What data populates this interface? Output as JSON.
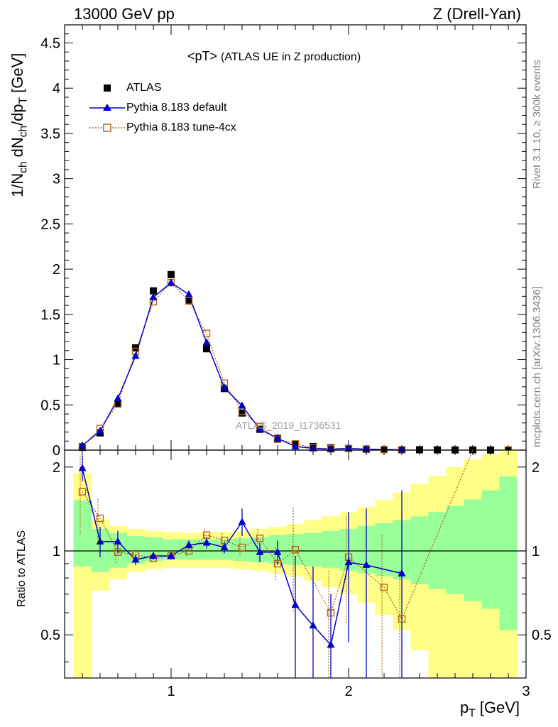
{
  "header": {
    "left": "13000 GeV pp",
    "right": "Z (Drell-Yan)"
  },
  "side_text": {
    "rivet": "Rivet 3.1.10, ≥ 300k events",
    "mcplots": "mcplots.cern.ch [arXiv:1306.3436]"
  },
  "watermark": "ATLAS_2019_I1736531",
  "main_ylabel": {
    "a": "1/N",
    "a_sub": "ch",
    "b": " dN",
    "b_sub": "ch",
    "c": "/dp",
    "c_sub": "T",
    "d": " [GeV]"
  },
  "ratio_ylabel": "Ratio to ATLAS",
  "xlabel": {
    "a": "p",
    "a_sub": "T",
    "b": " [GeV]"
  },
  "legend": [
    {
      "label": "ATLAS",
      "style": "data"
    },
    {
      "label": "Pythia 8.183 default",
      "style": "default"
    },
    {
      "label": "Pythia 8.183 tune-4cx",
      "style": "tune"
    }
  ],
  "chart_data": [
    {
      "type": "scatter",
      "title": "<pT>",
      "subtitle": "(ATLAS UE in Z production)",
      "xlabel": "pT [GeV]",
      "ylabel": "1/Nch dNch/dpT [GeV]",
      "xlim": [
        0.4,
        3.0
      ],
      "ylim": [
        0,
        4.7
      ],
      "yticks": [
        "0",
        "0.5",
        "1",
        "1.5",
        "2",
        "2.5",
        "3",
        "3.5",
        "4",
        "4.5"
      ],
      "x": [
        0.5,
        0.6,
        0.7,
        0.8,
        0.9,
        1.0,
        1.1,
        1.2,
        1.3,
        1.4,
        1.5,
        1.6,
        1.7,
        1.8,
        1.9,
        2.0,
        2.1,
        2.2,
        2.3,
        2.4,
        2.5,
        2.6,
        2.7,
        2.8,
        2.9
      ],
      "series": [
        {
          "name": "ATLAS",
          "color": "#000000",
          "values": [
            0.03,
            0.19,
            0.51,
            1.13,
            1.76,
            1.94,
            1.65,
            1.12,
            0.68,
            0.41,
            0.23,
            0.13,
            0.07,
            0.04,
            0.025,
            0.02,
            0.012,
            0.008,
            0.005,
            0.004,
            0.003,
            0.002,
            0.002,
            0.001,
            0.001
          ]
        },
        {
          "name": "Pythia 8.183 default",
          "color": "#0000cc",
          "values": [
            0.05,
            0.21,
            0.57,
            1.04,
            1.69,
            1.85,
            1.72,
            1.19,
            0.69,
            0.49,
            0.23,
            0.13,
            0.04,
            0.02,
            0.01,
            0.02,
            0.01,
            null,
            0.004,
            null,
            null,
            null,
            null,
            null,
            null
          ]
        },
        {
          "name": "Pythia 8.183 tune-4cx",
          "color": "#b5651d",
          "values": [
            0.04,
            0.24,
            0.51,
            1.09,
            1.64,
            1.85,
            1.65,
            1.29,
            0.74,
            0.43,
            0.26,
            0.12,
            0.07,
            0.025,
            0.015,
            0.018,
            0.008,
            0.006,
            0.003,
            null,
            null,
            null,
            null,
            null,
            0.002
          ]
        }
      ]
    },
    {
      "type": "scatter",
      "xlabel": "pT [GeV]",
      "ylabel": "Ratio to ATLAS",
      "xlim": [
        0.4,
        3.0
      ],
      "ylim": [
        0.35,
        2.3
      ],
      "yticks": [
        "0.5",
        "1",
        "2"
      ],
      "xticks": [
        "1",
        "2",
        "3"
      ],
      "x": [
        0.5,
        0.6,
        0.7,
        0.8,
        0.9,
        1.0,
        1.1,
        1.2,
        1.3,
        1.4,
        1.5,
        1.6,
        1.7,
        1.8,
        1.9,
        2.0,
        2.1,
        2.2,
        2.3,
        2.4,
        2.5,
        2.6,
        2.7,
        2.8,
        2.9
      ],
      "band_stat": [
        [
          0.88,
          1.52
        ],
        [
          0.84,
          1.2
        ],
        [
          0.87,
          1.16
        ],
        [
          0.9,
          1.13
        ],
        [
          0.92,
          1.12
        ],
        [
          0.93,
          1.1
        ],
        [
          0.93,
          1.1
        ],
        [
          0.93,
          1.1
        ],
        [
          0.93,
          1.1
        ],
        [
          0.92,
          1.11
        ],
        [
          0.91,
          1.12
        ],
        [
          0.9,
          1.14
        ],
        [
          0.89,
          1.15
        ],
        [
          0.88,
          1.16
        ],
        [
          0.87,
          1.18
        ],
        [
          0.85,
          1.2
        ],
        [
          0.83,
          1.23
        ],
        [
          0.81,
          1.26
        ],
        [
          0.79,
          1.29
        ],
        [
          0.76,
          1.33
        ],
        [
          0.73,
          1.38
        ],
        [
          0.7,
          1.45
        ],
        [
          0.66,
          1.53
        ],
        [
          0.62,
          1.65
        ],
        [
          0.52,
          1.85
        ]
      ],
      "band_total": [
        [
          0.35,
          1.9
        ],
        [
          0.72,
          1.3
        ],
        [
          0.79,
          1.23
        ],
        [
          0.84,
          1.2
        ],
        [
          0.86,
          1.18
        ],
        [
          0.87,
          1.17
        ],
        [
          0.87,
          1.16
        ],
        [
          0.87,
          1.17
        ],
        [
          0.87,
          1.17
        ],
        [
          0.86,
          1.18
        ],
        [
          0.85,
          1.2
        ],
        [
          0.83,
          1.22
        ],
        [
          0.81,
          1.25
        ],
        [
          0.78,
          1.29
        ],
        [
          0.74,
          1.33
        ],
        [
          0.7,
          1.38
        ],
        [
          0.65,
          1.44
        ],
        [
          0.59,
          1.52
        ],
        [
          0.52,
          1.62
        ],
        [
          0.44,
          1.74
        ],
        [
          0.35,
          1.86
        ],
        [
          0.35,
          2.0
        ],
        [
          0.35,
          2.13
        ],
        [
          0.35,
          2.22
        ],
        [
          0.35,
          2.3
        ]
      ],
      "series": [
        {
          "name": "Pythia 8.183 default",
          "color": "#0000cc",
          "values": [
            1.98,
            1.08,
            1.08,
            0.93,
            0.96,
            0.96,
            1.05,
            1.07,
            1.03,
            1.27,
            0.99,
            0.99,
            0.64,
            0.54,
            0.46,
            0.91,
            0.89,
            null,
            0.83,
            null,
            null,
            null,
            null,
            null,
            null
          ],
          "errors": [
            [
              1.78,
              2.2
            ],
            [
              0.95,
              1.22
            ],
            [
              0.98,
              1.18
            ],
            [
              0.89,
              0.97
            ],
            [
              0.93,
              0.99
            ],
            [
              0.93,
              0.99
            ],
            [
              1.01,
              1.09
            ],
            [
              1.02,
              1.12
            ],
            [
              0.98,
              1.08
            ],
            [
              1.13,
              1.42
            ],
            [
              0.91,
              1.07
            ],
            [
              0.89,
              1.09
            ],
            [
              0.35,
              0.96
            ],
            [
              0.35,
              0.88
            ],
            [
              0.35,
              0.7
            ],
            [
              0.47,
              1.38
            ],
            [
              0.35,
              1.42
            ],
            null,
            [
              0.35,
              1.65
            ],
            null,
            null,
            null,
            null,
            null,
            null
          ]
        },
        {
          "name": "Pythia 8.183 tune-4cx",
          "color": "#b5651d",
          "values": [
            1.63,
            1.31,
            0.99,
            0.97,
            0.94,
            0.96,
            1.0,
            1.14,
            1.09,
            1.03,
            1.11,
            0.9,
            1.01,
            null,
            0.6,
            0.95,
            null,
            0.74,
            0.57,
            null,
            null,
            null,
            null,
            null,
            null
          ],
          "errors": [
            [
              1.14,
              2.2
            ],
            [
              1.1,
              1.54
            ],
            [
              0.9,
              1.08
            ],
            [
              0.93,
              1.01
            ],
            [
              0.91,
              0.97
            ],
            [
              0.93,
              0.99
            ],
            [
              0.96,
              1.04
            ],
            [
              1.09,
              1.2
            ],
            [
              1.03,
              1.16
            ],
            [
              0.95,
              1.12
            ],
            [
              1.03,
              1.2
            ],
            [
              0.78,
              1.03
            ],
            [
              0.6,
              1.43
            ],
            null,
            [
              0.35,
              0.85
            ],
            [
              0.55,
              1.33
            ],
            null,
            [
              0.35,
              1.14
            ],
            [
              0.35,
              0.85
            ],
            null,
            null,
            null,
            null,
            null,
            null
          ],
          "trend_to": [
            2.7,
            2.3
          ]
        }
      ]
    }
  ]
}
